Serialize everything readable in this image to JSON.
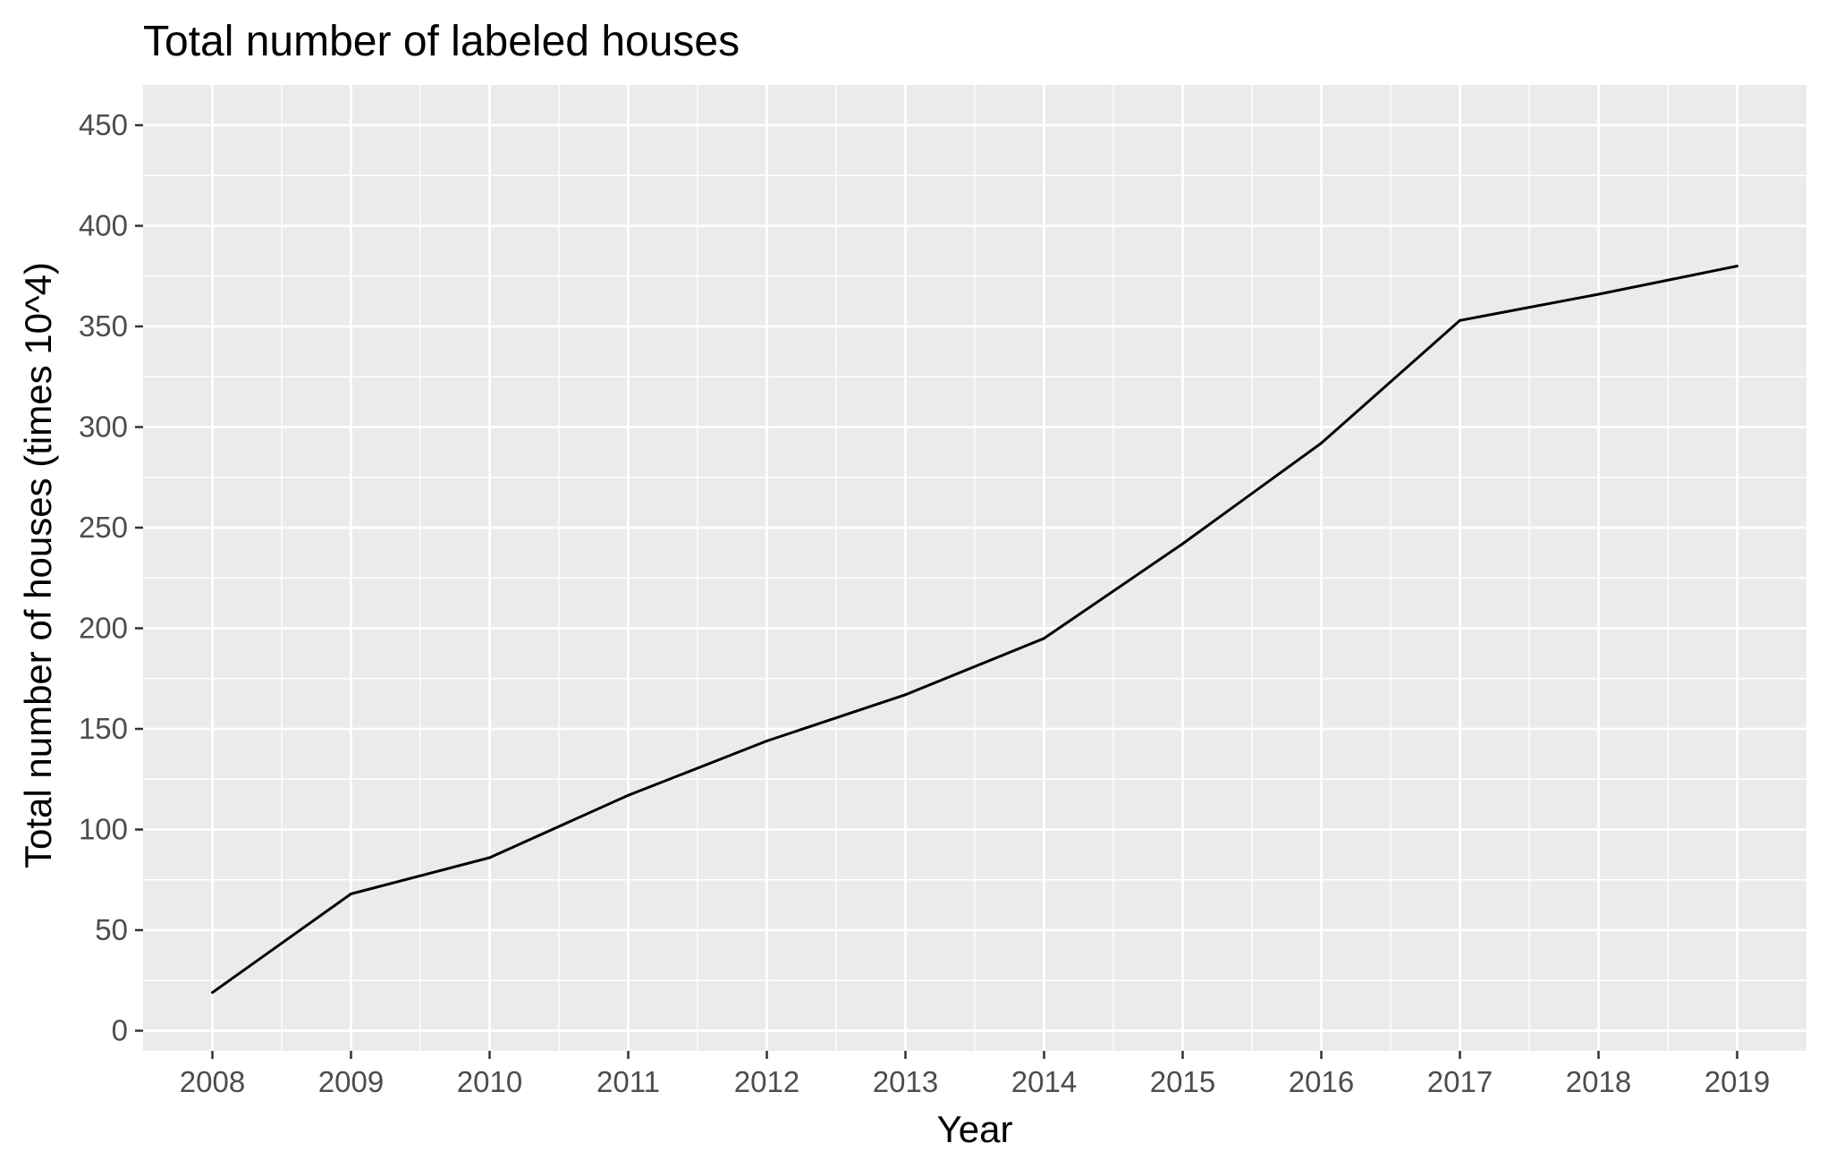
{
  "chart_data": {
    "type": "line",
    "title": "Total number of labeled houses",
    "xlabel": "Year",
    "ylabel": "Total number of houses (times 10^4)",
    "x": [
      2008,
      2009,
      2010,
      2011,
      2012,
      2013,
      2014,
      2015,
      2016,
      2017,
      2018,
      2019
    ],
    "xtick_labels": [
      "2008",
      "2009",
      "2010",
      "2011",
      "2012",
      "2013",
      "2014",
      "2015",
      "2016",
      "2017",
      "2018",
      "2019"
    ],
    "yticks": [
      0,
      50,
      100,
      150,
      200,
      250,
      300,
      350,
      400,
      450
    ],
    "ytick_labels": [
      "0",
      "50",
      "100",
      "150",
      "200",
      "250",
      "300",
      "350",
      "400",
      "450"
    ],
    "xlim": [
      2007.5,
      2019.5
    ],
    "ylim": [
      -10,
      470
    ],
    "grid": true,
    "legend": "none",
    "series": [
      {
        "values": [
          19,
          68,
          86,
          117,
          144,
          167,
          195,
          242,
          292,
          353,
          366,
          380
        ],
        "color": "#000000"
      }
    ],
    "panel_background": "#ebebeb",
    "grid_color": "#ffffff"
  }
}
